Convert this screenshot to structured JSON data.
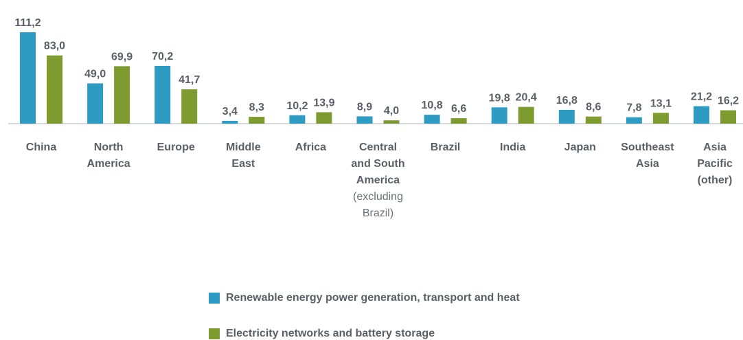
{
  "chart_data": {
    "type": "bar",
    "categories": [
      {
        "lines": [
          "China"
        ],
        "note": []
      },
      {
        "lines": [
          "North",
          "America"
        ],
        "note": []
      },
      {
        "lines": [
          "Europe"
        ],
        "note": []
      },
      {
        "lines": [
          "Middle",
          "East"
        ],
        "note": []
      },
      {
        "lines": [
          "Africa"
        ],
        "note": []
      },
      {
        "lines": [
          "Central",
          "and South",
          "America"
        ],
        "note": [
          "(excluding",
          "Brazil)"
        ]
      },
      {
        "lines": [
          "Brazil"
        ],
        "note": []
      },
      {
        "lines": [
          "India"
        ],
        "note": []
      },
      {
        "lines": [
          "Japan"
        ],
        "note": []
      },
      {
        "lines": [
          "Southeast",
          "Asia"
        ],
        "note": []
      },
      {
        "lines": [
          "Asia",
          "Pacific",
          "(other)"
        ],
        "note": []
      }
    ],
    "series": [
      {
        "name": "Renewable energy power generation, transport and heat",
        "color": "#2e9cc2",
        "values": [
          111.2,
          49.0,
          70.2,
          3.4,
          10.2,
          8.9,
          10.8,
          19.8,
          16.8,
          7.8,
          21.2
        ],
        "labels": [
          "111,2",
          "49,0",
          "70,2",
          "3,4",
          "10,2",
          "8,9",
          "10,8",
          "19,8",
          "16,8",
          "7,8",
          "21,2"
        ]
      },
      {
        "name": "Electricity networks and battery storage",
        "color": "#7d9b2e",
        "values": [
          83.0,
          69.9,
          41.7,
          8.3,
          13.9,
          4.0,
          6.6,
          20.4,
          8.6,
          13.1,
          16.2
        ],
        "labels": [
          "83,0",
          "69,9",
          "41,7",
          "8,3",
          "13,9",
          "4,0",
          "6,6",
          "20,4",
          "8,6",
          "13,1",
          "16,2"
        ]
      }
    ],
    "ylim": [
      0,
      111.2
    ],
    "grid": false,
    "legend_position": "bottom-center"
  }
}
